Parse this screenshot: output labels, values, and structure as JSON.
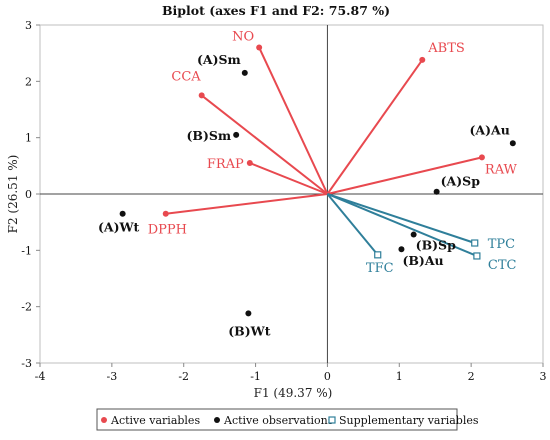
{
  "chart_data": {
    "type": "scatter",
    "title": "Biplot (axes F1 and F2: 75.87 %)",
    "xlabel": "F1 (49.37 %)",
    "ylabel": "F2 (26.51 %)",
    "xlim": [
      -4,
      3
    ],
    "ylim": [
      -3,
      3
    ],
    "xticks": [
      -4,
      -3,
      -2,
      -1,
      0,
      1,
      2,
      3
    ],
    "yticks": [
      -3,
      -2,
      -1,
      0,
      1,
      2,
      3
    ],
    "grid": false,
    "legend_position": "bottom",
    "colors": {
      "active": "#e8494f",
      "observation": "#111111",
      "supplementary": "#2f7f9a"
    },
    "series": [
      {
        "name": "Active variables",
        "kind": "vectors",
        "points": [
          {
            "label": "NO",
            "x": -0.95,
            "y": 2.6
          },
          {
            "label": "ABTS",
            "x": 1.32,
            "y": 2.38
          },
          {
            "label": "CCA",
            "x": -1.75,
            "y": 1.75
          },
          {
            "label": "FRAP",
            "x": -1.08,
            "y": 0.55
          },
          {
            "label": "RAW",
            "x": 2.15,
            "y": 0.65
          },
          {
            "label": "DPPH",
            "x": -2.25,
            "y": -0.35
          }
        ]
      },
      {
        "name": "Active observations",
        "kind": "points",
        "points": [
          {
            "label": "(A)Sm",
            "x": -1.15,
            "y": 2.15
          },
          {
            "label": "(B)Sm",
            "x": -1.27,
            "y": 1.05
          },
          {
            "label": "(A)Au",
            "x": 2.58,
            "y": 0.9
          },
          {
            "label": "(A)Sp",
            "x": 1.52,
            "y": 0.04
          },
          {
            "label": "(A)Wt",
            "x": -2.85,
            "y": -0.35
          },
          {
            "label": "(B)Sp",
            "x": 1.2,
            "y": -0.72
          },
          {
            "label": "(B)Au",
            "x": 1.03,
            "y": -0.98
          },
          {
            "label": "(B)Wt",
            "x": -1.1,
            "y": -2.12
          }
        ]
      },
      {
        "name": "Supplementary variables",
        "kind": "vectors",
        "points": [
          {
            "label": "TPC",
            "x": 2.05,
            "y": -0.87
          },
          {
            "label": "CTC",
            "x": 2.08,
            "y": -1.1
          },
          {
            "label": "TFC",
            "x": 0.7,
            "y": -1.08
          }
        ]
      }
    ]
  }
}
